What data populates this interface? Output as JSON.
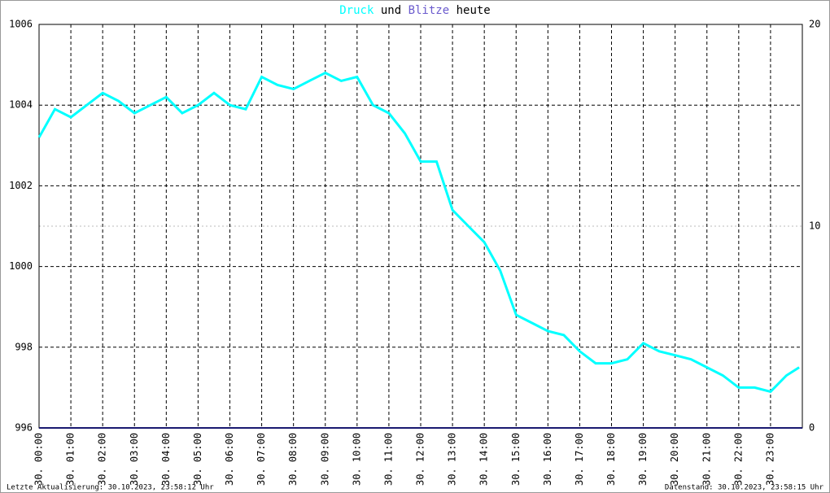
{
  "chart_data": {
    "type": "line",
    "title": [
      "Druck",
      "und",
      "Blitze",
      "heute"
    ],
    "footer_left": "Letzte Aktualisierung: 30.10.2023, 23:58:12 Uhr",
    "footer_right": "Datenstand: 30.10.2023, 23:58:15 Uhr",
    "xlim": [
      0,
      24
    ],
    "xticks": [
      {
        "value": 0,
        "label": "30. 00:00"
      },
      {
        "value": 1,
        "label": "30. 01:00"
      },
      {
        "value": 2,
        "label": "30. 02:00"
      },
      {
        "value": 3,
        "label": "30. 03:00"
      },
      {
        "value": 4,
        "label": "30. 04:00"
      },
      {
        "value": 5,
        "label": "30. 05:00"
      },
      {
        "value": 6,
        "label": "30. 06:00"
      },
      {
        "value": 7,
        "label": "30. 07:00"
      },
      {
        "value": 8,
        "label": "30. 08:00"
      },
      {
        "value": 9,
        "label": "30. 09:00"
      },
      {
        "value": 10,
        "label": "30. 10:00"
      },
      {
        "value": 11,
        "label": "30. 11:00"
      },
      {
        "value": 12,
        "label": "30. 12:00"
      },
      {
        "value": 13,
        "label": "30. 13:00"
      },
      {
        "value": 14,
        "label": "30. 14:00"
      },
      {
        "value": 15,
        "label": "30. 15:00"
      },
      {
        "value": 16,
        "label": "30. 16:00"
      },
      {
        "value": 17,
        "label": "30. 17:00"
      },
      {
        "value": 18,
        "label": "30. 18:00"
      },
      {
        "value": 19,
        "label": "30. 19:00"
      },
      {
        "value": 20,
        "label": "30. 20:00"
      },
      {
        "value": 21,
        "label": "30. 21:00"
      },
      {
        "value": 22,
        "label": "30. 22:00"
      },
      {
        "value": 23,
        "label": "30. 23:00"
      }
    ],
    "ylim": [
      996,
      1006
    ],
    "yticks": [
      996,
      998,
      1000,
      1002,
      1004,
      1006
    ],
    "y2lim": [
      0,
      20
    ],
    "y2ticks": [
      0,
      10,
      20
    ],
    "grid": true,
    "series": [
      {
        "name": "Druck",
        "color": "#00ffff",
        "x": [
          0,
          0.5,
          1,
          1.5,
          2,
          2.5,
          3,
          3.5,
          4,
          4.5,
          5,
          5.5,
          6,
          6.5,
          7,
          7.5,
          8,
          8.5,
          9,
          9.5,
          10,
          10.5,
          11,
          11.5,
          12,
          12.5,
          13,
          13.5,
          14,
          14.5,
          15,
          15.5,
          16,
          16.5,
          17,
          17.5,
          18,
          18.5,
          19,
          19.5,
          20,
          20.5,
          21,
          21.5,
          22,
          22.5,
          23,
          23.5,
          23.9
        ],
        "values": [
          1003.2,
          1003.9,
          1003.7,
          1004.0,
          1004.3,
          1004.1,
          1003.8,
          1004.0,
          1004.2,
          1003.8,
          1004.0,
          1004.3,
          1004.0,
          1003.9,
          1004.7,
          1004.5,
          1004.4,
          1004.6,
          1004.8,
          1004.6,
          1004.7,
          1004.0,
          1003.8,
          1003.3,
          1002.6,
          1002.6,
          1001.4,
          1001.0,
          1000.6,
          999.9,
          998.8,
          998.6,
          998.4,
          998.3,
          997.9,
          997.6,
          997.6,
          997.7,
          998.1,
          997.9,
          997.8,
          997.7,
          997.5,
          997.3,
          997.0,
          997.0,
          996.9,
          997.3,
          997.5
        ]
      },
      {
        "name": "Blitze",
        "color": "#191970",
        "axis": "y2",
        "x": [
          0,
          24
        ],
        "values": [
          0,
          0
        ]
      }
    ]
  }
}
